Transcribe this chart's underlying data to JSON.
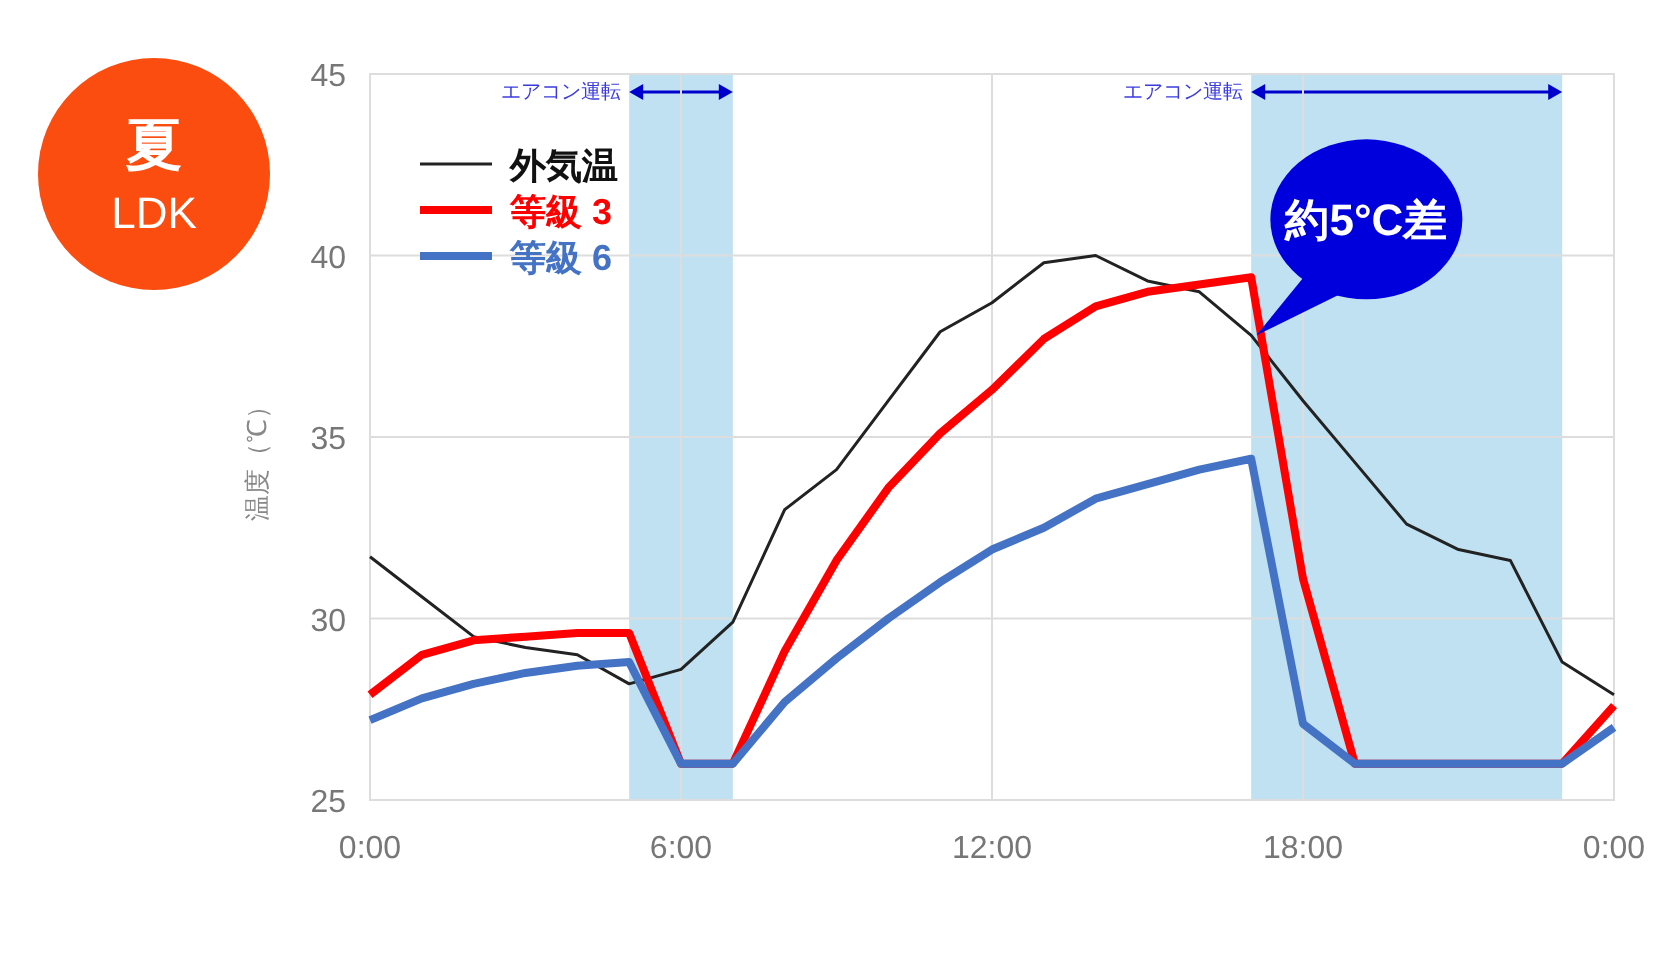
{
  "chart_data": {
    "type": "line",
    "ylabel": "温度（℃）",
    "x": [
      0,
      1,
      2,
      3,
      4,
      5,
      6,
      7,
      8,
      9,
      10,
      11,
      12,
      13,
      14,
      15,
      16,
      17,
      18,
      19,
      20,
      21,
      22,
      23,
      24
    ],
    "xlim": [
      0,
      24
    ],
    "xticks": [
      {
        "value": 0,
        "label": "0:00"
      },
      {
        "value": 6,
        "label": "6:00"
      },
      {
        "value": 12,
        "label": "12:00"
      },
      {
        "value": 18,
        "label": "18:00"
      },
      {
        "value": 24,
        "label": "0:00"
      }
    ],
    "ylim": [
      25,
      45
    ],
    "yticks": [
      25,
      30,
      35,
      40,
      45
    ],
    "grid": true,
    "legend": "top left",
    "line_style": "solid",
    "series": [
      {
        "name": "外気温",
        "color": "#222222",
        "values": [
          31.7,
          30.6,
          29.5,
          29.2,
          29.0,
          28.2,
          28.6,
          29.9,
          33.0,
          34.1,
          36.0,
          37.9,
          38.7,
          39.8,
          40.0,
          39.3,
          39.0,
          37.8,
          36.0,
          34.3,
          32.6,
          31.9,
          31.6,
          28.8,
          27.9
        ]
      },
      {
        "name": "等級 3",
        "color": "#ff0000",
        "values": [
          27.9,
          29.0,
          29.4,
          29.5,
          29.6,
          29.6,
          26.0,
          26.0,
          29.1,
          31.6,
          33.6,
          35.1,
          36.3,
          37.7,
          38.6,
          39.0,
          39.2,
          39.4,
          31.1,
          26.0,
          null,
          null,
          null,
          26.0,
          27.6
        ]
      },
      {
        "name": "等級 6",
        "color": "#4472c4",
        "values": [
          27.2,
          27.8,
          28.2,
          28.5,
          28.7,
          28.8,
          26.0,
          26.0,
          27.7,
          28.9,
          30.0,
          31.0,
          31.9,
          32.5,
          33.3,
          33.7,
          34.1,
          34.4,
          27.1,
          26.0,
          26.0,
          26.0,
          26.0,
          26.0,
          27.0
        ]
      }
    ],
    "bands": [
      {
        "axis": "x",
        "from": 5,
        "to": 7,
        "label": "エアコン運転",
        "color": "#bfe1f2"
      },
      {
        "axis": "x",
        "from": 17,
        "to": 23,
        "label": "エアコン運転",
        "color": "#bfe1f2"
      }
    ],
    "annotations": [
      "夏",
      "LDK",
      {
        "text": "約5°C差",
        "x": 17.1,
        "y": 37.8
      }
    ]
  }
}
